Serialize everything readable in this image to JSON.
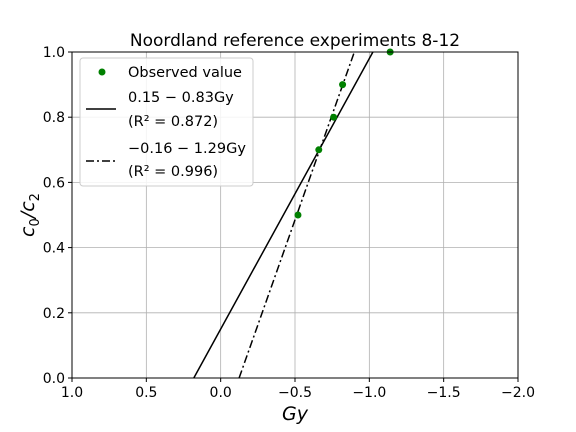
{
  "chart_data": {
    "type": "scatter",
    "title": "Noordland reference experiments 8-12",
    "xlabel": "Gy",
    "ylabel": "c0/c2",
    "xlim": [
      1.0,
      -2.0
    ],
    "ylim": [
      0.0,
      1.0
    ],
    "x_ticks": [
      1.0,
      0.5,
      0.0,
      -0.5,
      -1.0,
      -1.5,
      -2.0
    ],
    "x_tick_labels": [
      "1.0",
      "0.5",
      "0.0",
      "−0.5",
      "−1.0",
      "−1.5",
      "−2.0"
    ],
    "y_ticks": [
      0.0,
      0.2,
      0.4,
      0.6,
      0.8,
      1.0
    ],
    "y_tick_labels": [
      "0.0",
      "0.2",
      "0.4",
      "0.6",
      "0.8",
      "1.0"
    ],
    "grid": true,
    "legend_position": "top-left",
    "points": {
      "name": "Observed value",
      "color": "#008000",
      "x": [
        -0.52,
        -0.66,
        -0.76,
        -0.82,
        -1.14
      ],
      "y": [
        0.5,
        0.7,
        0.8,
        0.9,
        1.0
      ]
    },
    "fits": [
      {
        "name": "0.15 − 0.83Gy",
        "r2_label": "(R² = 0.872)",
        "intercept": 0.15,
        "slope": -0.83,
        "linestyle": "solid",
        "color": "#000000"
      },
      {
        "name": "−0.16 − 1.29Gy",
        "r2_label": "(R² = 0.996)",
        "intercept": -0.16,
        "slope": -1.29,
        "linestyle": "dashdot",
        "color": "#000000"
      }
    ]
  }
}
